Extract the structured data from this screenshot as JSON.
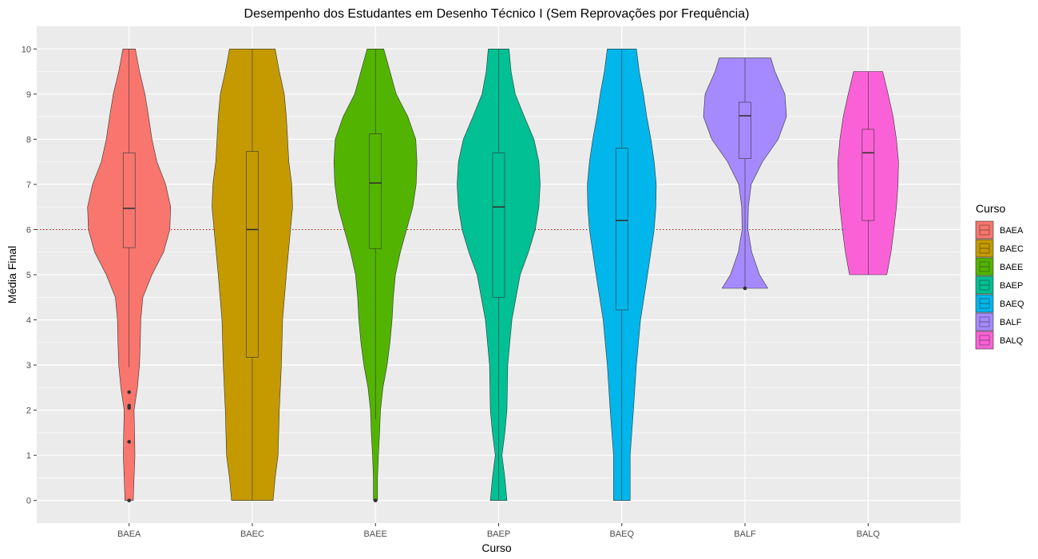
{
  "chart_data": {
    "type": "violin",
    "title": "Desempenho dos Estudantes em Desenho Técnico I (Sem Reprovações por Frequência)",
    "xlabel": "Curso",
    "ylabel": "Média Final",
    "ylim": [
      -0.5,
      10.5
    ],
    "yticks": [
      0,
      1,
      2,
      3,
      4,
      5,
      6,
      7,
      8,
      9,
      10
    ],
    "grid": true,
    "reference_line": {
      "y": 6,
      "color": "#cc0000",
      "style": "dotted"
    },
    "legend": {
      "title": "Curso",
      "position": "right"
    },
    "categories": [
      "BAEA",
      "BAEC",
      "BAEE",
      "BAEP",
      "BAEQ",
      "BALF",
      "BALQ"
    ],
    "series": [
      {
        "name": "BAEA",
        "color": "#F8766D",
        "density": [
          [
            0,
            0.1
          ],
          [
            0.5,
            0.12
          ],
          [
            1,
            0.14
          ],
          [
            1.5,
            0.13
          ],
          [
            2,
            0.12
          ],
          [
            2.5,
            0.2
          ],
          [
            3,
            0.25
          ],
          [
            3.5,
            0.27
          ],
          [
            4,
            0.28
          ],
          [
            4.5,
            0.33
          ],
          [
            5,
            0.55
          ],
          [
            5.5,
            0.83
          ],
          [
            6,
            0.98
          ],
          [
            6.5,
            1.0
          ],
          [
            7,
            0.88
          ],
          [
            7.5,
            0.67
          ],
          [
            8,
            0.55
          ],
          [
            8.5,
            0.47
          ],
          [
            9,
            0.38
          ],
          [
            9.5,
            0.25
          ],
          [
            10,
            0.15
          ]
        ],
        "box": {
          "min": 2.95,
          "q1": 5.6,
          "median": 6.47,
          "q3": 7.7,
          "max": 10
        },
        "outliers": [
          2.4,
          2.1,
          2.05,
          1.3,
          0
        ]
      },
      {
        "name": "BAEC",
        "color": "#C49A00",
        "density": [
          [
            0,
            0.5
          ],
          [
            0.5,
            0.55
          ],
          [
            1,
            0.62
          ],
          [
            2,
            0.65
          ],
          [
            3,
            0.7
          ],
          [
            4,
            0.73
          ],
          [
            5,
            0.82
          ],
          [
            6,
            0.92
          ],
          [
            6.5,
            0.97
          ],
          [
            7,
            0.95
          ],
          [
            7.5,
            0.88
          ],
          [
            8,
            0.85
          ],
          [
            8.5,
            0.82
          ],
          [
            9,
            0.77
          ],
          [
            9.5,
            0.65
          ],
          [
            10,
            0.55
          ]
        ],
        "box": {
          "min": 0,
          "q1": 3.17,
          "median": 6.0,
          "q3": 7.73,
          "max": 10
        },
        "outliers": []
      },
      {
        "name": "BAEE",
        "color": "#53B400",
        "density": [
          [
            0,
            0.05
          ],
          [
            0.5,
            0.05
          ],
          [
            1,
            0.07
          ],
          [
            1.5,
            0.1
          ],
          [
            2,
            0.12
          ],
          [
            2.5,
            0.18
          ],
          [
            3,
            0.28
          ],
          [
            3.5,
            0.35
          ],
          [
            4,
            0.4
          ],
          [
            4.5,
            0.43
          ],
          [
            5,
            0.48
          ],
          [
            5.5,
            0.6
          ],
          [
            6,
            0.75
          ],
          [
            6.5,
            0.9
          ],
          [
            7,
            0.98
          ],
          [
            7.5,
            1.0
          ],
          [
            8,
            0.97
          ],
          [
            8.5,
            0.78
          ],
          [
            9,
            0.5
          ],
          [
            9.5,
            0.35
          ],
          [
            10,
            0.2
          ]
        ],
        "box": {
          "min": 1.8,
          "q1": 5.58,
          "median": 7.03,
          "q3": 8.12,
          "max": 10
        },
        "outliers": [
          0
        ]
      },
      {
        "name": "BAEP",
        "color": "#00C094",
        "density": [
          [
            0,
            0.2
          ],
          [
            0.5,
            0.15
          ],
          [
            1,
            0.08
          ],
          [
            1.5,
            0.15
          ],
          [
            2,
            0.2
          ],
          [
            3,
            0.22
          ],
          [
            4,
            0.32
          ],
          [
            4.5,
            0.42
          ],
          [
            5,
            0.52
          ],
          [
            5.5,
            0.72
          ],
          [
            6,
            0.88
          ],
          [
            6.5,
            0.97
          ],
          [
            7,
            1.0
          ],
          [
            7.5,
            0.97
          ],
          [
            8,
            0.85
          ],
          [
            8.5,
            0.62
          ],
          [
            9,
            0.4
          ],
          [
            9.5,
            0.3
          ],
          [
            10,
            0.25
          ]
        ],
        "box": {
          "min": 0,
          "q1": 4.5,
          "median": 6.5,
          "q3": 7.7,
          "max": 10
        },
        "outliers": []
      },
      {
        "name": "BAEQ",
        "color": "#00B6EB",
        "density": [
          [
            0,
            0.2
          ],
          [
            1,
            0.2
          ],
          [
            2,
            0.28
          ],
          [
            3,
            0.35
          ],
          [
            4,
            0.45
          ],
          [
            5,
            0.62
          ],
          [
            6,
            0.78
          ],
          [
            6.5,
            0.82
          ],
          [
            7,
            0.83
          ],
          [
            7.5,
            0.78
          ],
          [
            8,
            0.7
          ],
          [
            8.5,
            0.6
          ],
          [
            9,
            0.52
          ],
          [
            9.5,
            0.42
          ],
          [
            10,
            0.35
          ]
        ],
        "box": {
          "min": 0,
          "q1": 4.22,
          "median": 6.2,
          "q3": 7.8,
          "max": 10
        },
        "outliers": []
      },
      {
        "name": "BALF",
        "color": "#A58AFF",
        "density": [
          [
            4.7,
            0.55
          ],
          [
            5,
            0.35
          ],
          [
            5.5,
            0.16
          ],
          [
            6,
            0.07
          ],
          [
            6.5,
            0.08
          ],
          [
            7,
            0.15
          ],
          [
            7.5,
            0.42
          ],
          [
            8,
            0.8
          ],
          [
            8.5,
            1.0
          ],
          [
            9,
            0.96
          ],
          [
            9.5,
            0.72
          ],
          [
            9.8,
            0.62
          ]
        ],
        "box": {
          "min": 4.7,
          "q1": 7.57,
          "median": 8.52,
          "q3": 8.82,
          "max": 9.8
        },
        "outliers": [
          4.7
        ]
      },
      {
        "name": "BALQ",
        "color": "#FB61D7",
        "density": [
          [
            5,
            0.45
          ],
          [
            5.5,
            0.55
          ],
          [
            6,
            0.62
          ],
          [
            6.5,
            0.68
          ],
          [
            7,
            0.72
          ],
          [
            7.5,
            0.73
          ],
          [
            8,
            0.68
          ],
          [
            8.5,
            0.6
          ],
          [
            9,
            0.48
          ],
          [
            9.5,
            0.35
          ]
        ],
        "box": {
          "min": 5,
          "q1": 6.2,
          "median": 7.7,
          "q3": 8.22,
          "max": 9.5
        },
        "outliers": []
      }
    ]
  }
}
